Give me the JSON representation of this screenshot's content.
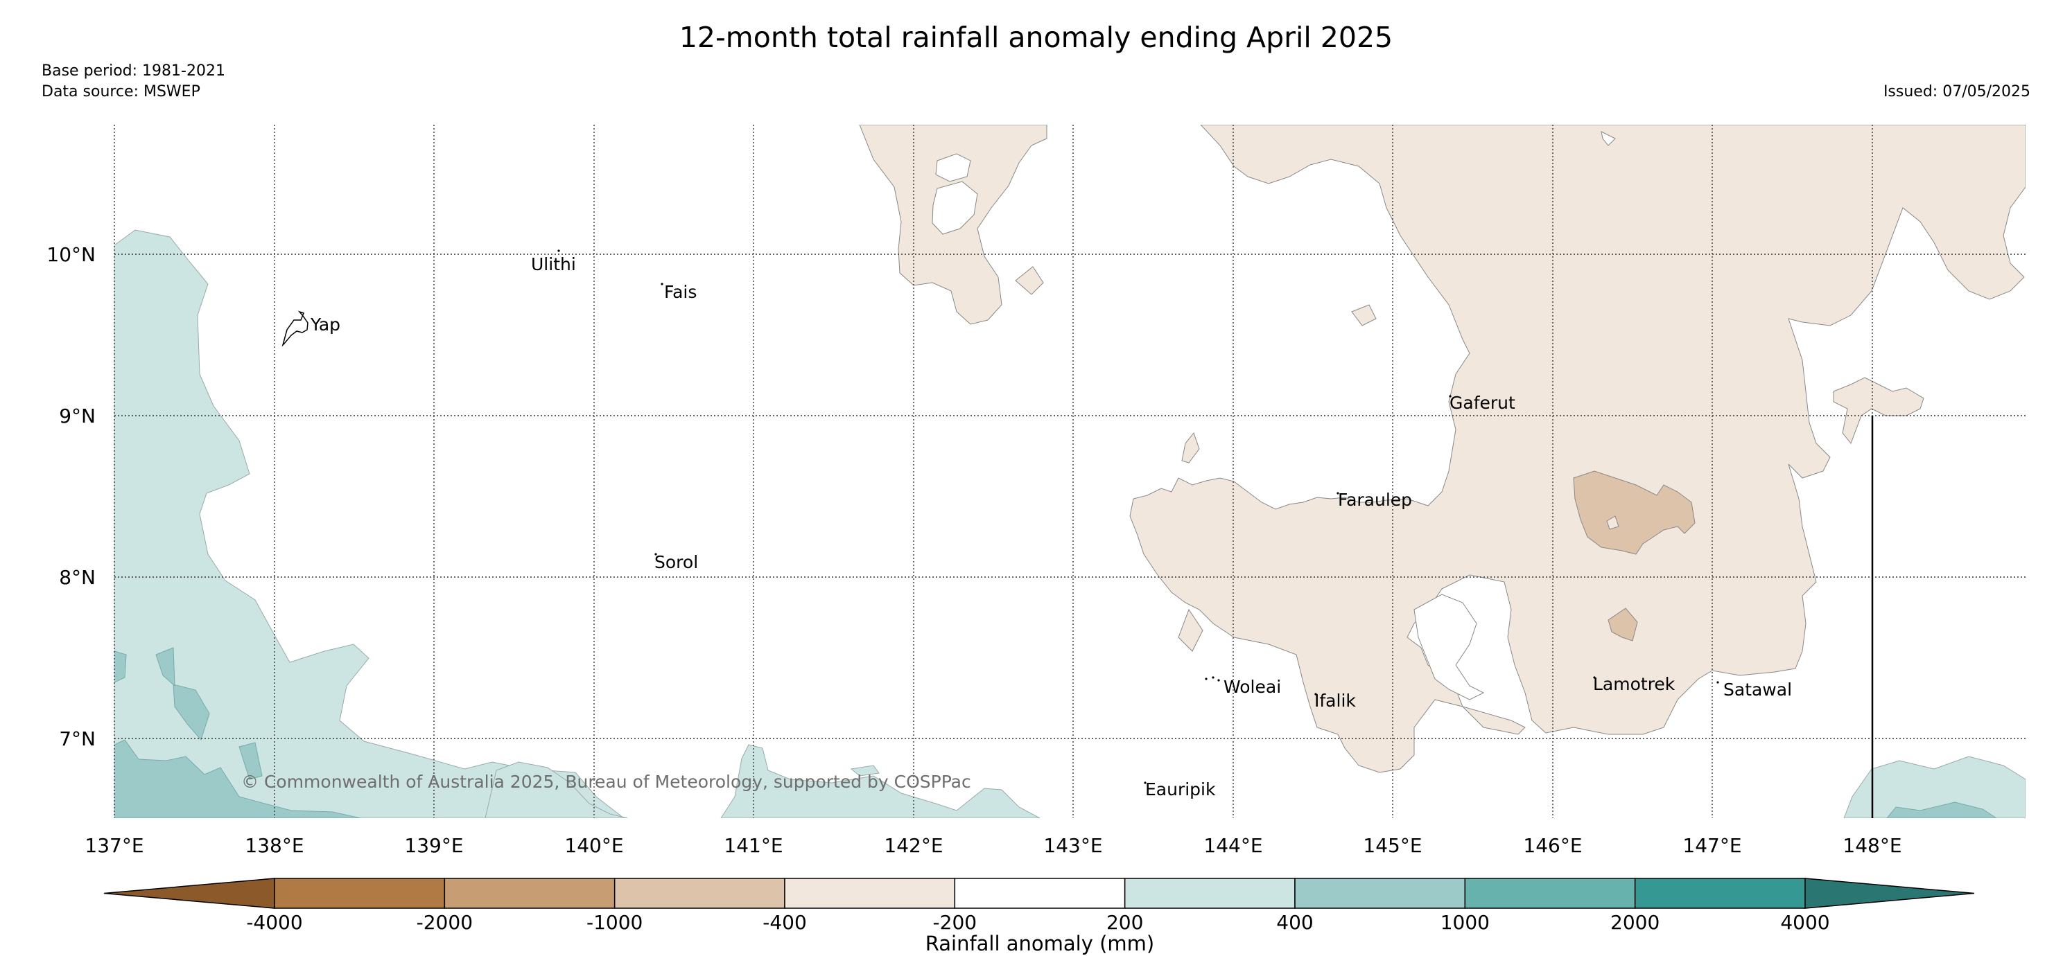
{
  "title": "12-month total rainfall anomaly ending April 2025",
  "base_period": "Base period: 1981-2021",
  "data_source": "Data source: MSWEP",
  "issued": "Issued: 07/05/2025",
  "copyright": "© Commonwealth of Australia 2025, Bureau of Meteorology, supported by COSPPac",
  "map": {
    "lon_range": [
      137.0,
      149.0
    ],
    "lat_range": [
      6.5,
      10.8
    ],
    "lon_ticks": [
      "137°E",
      "138°E",
      "139°E",
      "140°E",
      "141°E",
      "142°E",
      "143°E",
      "144°E",
      "145°E",
      "146°E",
      "147°E",
      "148°E"
    ],
    "lat_ticks": [
      "7°N",
      "8°N",
      "9°N",
      "10°N"
    ],
    "places": [
      {
        "name": "Yap"
      },
      {
        "name": "Ulithi"
      },
      {
        "name": "Fais"
      },
      {
        "name": "Sorol"
      },
      {
        "name": "Gaferut"
      },
      {
        "name": "Faraulep"
      },
      {
        "name": "Woleai"
      },
      {
        "name": "Ifalik"
      },
      {
        "name": "Eauripik"
      },
      {
        "name": "Lamotrek"
      },
      {
        "name": "Satawal"
      }
    ]
  },
  "colorbar": {
    "title": "Rainfall anomaly (mm)",
    "ticks": [
      "-4000",
      "-2000",
      "-1000",
      "-400",
      "-200",
      "200",
      "400",
      "1000",
      "2000",
      "4000"
    ],
    "colors": {
      "below_min": "#8c5a2a",
      "bin_1": "#b07a45",
      "bin_2": "#c79d74",
      "bin_3": "#ddc3a9",
      "bin_4": "#f1e7dd",
      "bin_5": "#ffffff",
      "bin_6": "#cce5e3",
      "bin_7": "#9ccac8",
      "bin_8": "#68b2ad",
      "bin_9": "#369893",
      "above_max": "#2a7672"
    }
  }
}
